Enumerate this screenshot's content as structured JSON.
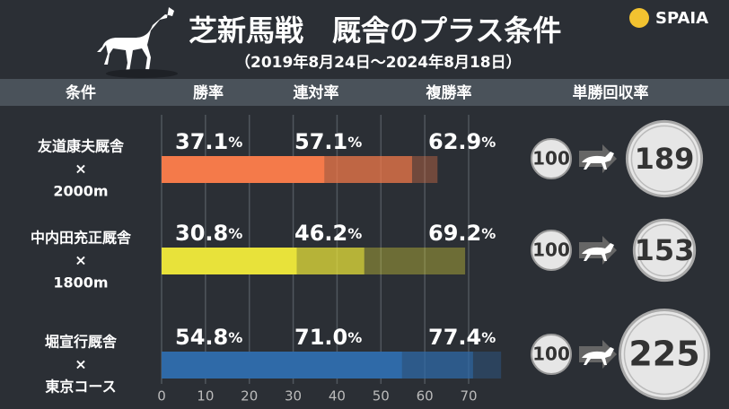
{
  "chart_data": {
    "type": "bar",
    "title": "芝新馬戦　厩舎のプラス条件",
    "subtitle": "（2019年8月24日〜2024年8月18日）",
    "brand": "SPAIA",
    "columns": [
      "条件",
      "勝率",
      "連対率",
      "複勝率",
      "単勝回収率"
    ],
    "xlim": [
      0,
      70
    ],
    "xticks": [
      0,
      10,
      20,
      30,
      40,
      50,
      60,
      70
    ],
    "rows": [
      {
        "label": [
          "友道康夫厩舎",
          "×",
          "2000m"
        ],
        "color": "#f47a4a",
        "values": [
          37.1,
          57.1,
          62.9
        ],
        "value_labels": [
          "37.1%",
          "57.1%",
          "62.9%"
        ],
        "base": 100,
        "recovery": 189
      },
      {
        "label": [
          "中内田充正厩舎",
          "×",
          "1800m"
        ],
        "color": "#e8e23a",
        "values": [
          30.8,
          46.2,
          69.2
        ],
        "value_labels": [
          "30.8%",
          "46.2%",
          "69.2%"
        ],
        "base": 100,
        "recovery": 153
      },
      {
        "label": [
          "堀宣行厩舎",
          "×",
          "東京コース"
        ],
        "color": "#2f6aa8",
        "values": [
          54.8,
          71.0,
          77.4
        ],
        "value_labels": [
          "54.8%",
          "71.0%",
          "77.4%"
        ],
        "base": 100,
        "recovery": 225
      }
    ]
  }
}
